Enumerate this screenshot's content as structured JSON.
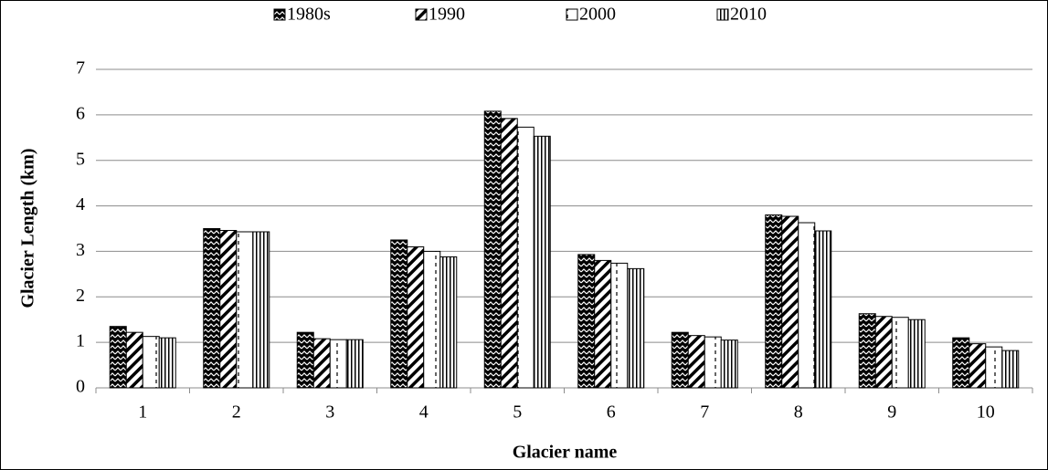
{
  "chart_data": {
    "type": "bar",
    "xlabel": "Glacier name",
    "ylabel": "Glacier Length (km)",
    "categories": [
      "1",
      "2",
      "3",
      "4",
      "5",
      "6",
      "7",
      "8",
      "9",
      "10"
    ],
    "series": [
      {
        "name": "1980s",
        "color": "#000000",
        "pattern": "zigzag",
        "values": [
          1.35,
          3.5,
          1.22,
          3.25,
          6.08,
          2.93,
          1.22,
          3.8,
          1.63,
          1.1
        ]
      },
      {
        "name": "1990",
        "color": "#000000",
        "pattern": "diagonal",
        "values": [
          1.22,
          3.46,
          1.08,
          3.1,
          5.92,
          2.8,
          1.15,
          3.77,
          1.57,
          0.97
        ]
      },
      {
        "name": "2000",
        "color": "#000000",
        "pattern": "dashed",
        "values": [
          1.13,
          3.43,
          1.06,
          3.0,
          5.73,
          2.74,
          1.12,
          3.63,
          1.55,
          0.9
        ]
      },
      {
        "name": "2010",
        "color": "#000000",
        "pattern": "vertical",
        "values": [
          1.1,
          3.43,
          1.06,
          2.88,
          5.53,
          2.62,
          1.05,
          3.45,
          1.5,
          0.82
        ]
      }
    ],
    "ylim": [
      0,
      7
    ],
    "yticks": [
      0,
      1,
      2,
      3,
      4,
      5,
      6,
      7
    ],
    "grid": true,
    "legend": "top"
  }
}
